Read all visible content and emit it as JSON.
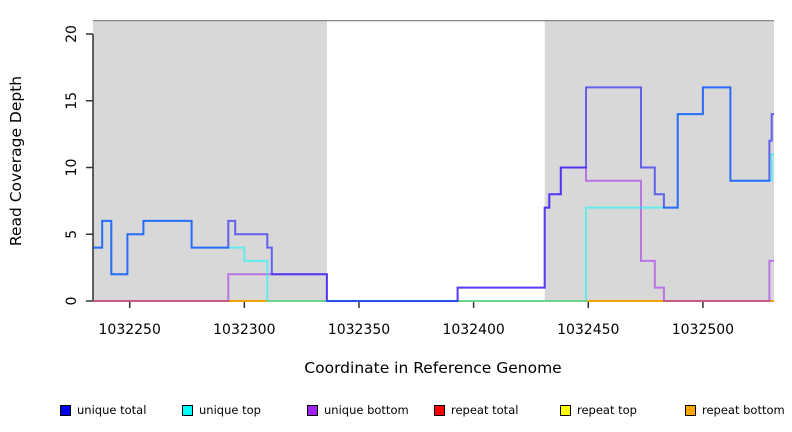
{
  "chart_data": {
    "type": "line",
    "subtype": "step-coverage-plot",
    "title": "",
    "xlabel": "Coordinate in Reference Genome",
    "ylabel": "Read Coverage Depth",
    "xlim": [
      1032234,
      1032531
    ],
    "ylim": [
      0,
      21
    ],
    "x_ticks": [
      1032250,
      1032300,
      1032350,
      1032400,
      1032450,
      1032500
    ],
    "x_tick_labels": [
      "1032250",
      "1032300",
      "1032350",
      "1032400",
      "1032450",
      "1032500"
    ],
    "y_ticks": [
      0,
      5,
      10,
      15,
      20
    ],
    "y_tick_labels": [
      "0",
      "5",
      "10",
      "15",
      "20"
    ],
    "grid": false,
    "panel": {
      "background_color": "#d8d8d8",
      "shaded_regions": [
        [
          1032234,
          1032336
        ],
        [
          1032431,
          1032531
        ]
      ],
      "unshaded_region": [
        1032336,
        1032431
      ],
      "top_border_color": "#888888"
    },
    "line_width": 2,
    "line_alpha": 0.55,
    "series": [
      {
        "name": "repeat total",
        "color": "#FF0000",
        "steps": [
          [
            1032234,
            0
          ]
        ]
      },
      {
        "name": "repeat top",
        "color": "#FFFF00",
        "steps": [
          [
            1032234,
            0
          ]
        ]
      },
      {
        "name": "repeat bottom",
        "color": "#FFA500",
        "steps": [
          [
            1032234,
            0
          ]
        ]
      },
      {
        "name": "unique bottom",
        "color": "#A020F0",
        "steps": [
          [
            1032234,
            0
          ],
          [
            1032293,
            2
          ],
          [
            1032336,
            0
          ],
          [
            1032393,
            1
          ],
          [
            1032431,
            7
          ],
          [
            1032433,
            8
          ],
          [
            1032438,
            10
          ],
          [
            1032449,
            9
          ],
          [
            1032473,
            3
          ],
          [
            1032479,
            1
          ],
          [
            1032483,
            0
          ],
          [
            1032529,
            3
          ]
        ]
      },
      {
        "name": "unique top",
        "color": "#00FFFF",
        "steps": [
          [
            1032234,
            4
          ],
          [
            1032238,
            6
          ],
          [
            1032242,
            2
          ],
          [
            1032249,
            5
          ],
          [
            1032256,
            6
          ],
          [
            1032277,
            4
          ],
          [
            1032300,
            3
          ],
          [
            1032310,
            0
          ],
          [
            1032449,
            7
          ],
          [
            1032489,
            14
          ],
          [
            1032500,
            16
          ],
          [
            1032512,
            9
          ],
          [
            1032530,
            11
          ]
        ]
      },
      {
        "name": "unique total",
        "color": "#0000FF",
        "steps": [
          [
            1032234,
            4
          ],
          [
            1032238,
            6
          ],
          [
            1032242,
            2
          ],
          [
            1032249,
            5
          ],
          [
            1032256,
            6
          ],
          [
            1032277,
            4
          ],
          [
            1032293,
            6
          ],
          [
            1032296,
            5
          ],
          [
            1032310,
            4
          ],
          [
            1032312,
            2
          ],
          [
            1032336,
            0
          ],
          [
            1032393,
            1
          ],
          [
            1032431,
            7
          ],
          [
            1032433,
            8
          ],
          [
            1032438,
            10
          ],
          [
            1032449,
            16
          ],
          [
            1032473,
            10
          ],
          [
            1032479,
            8
          ],
          [
            1032483,
            7
          ],
          [
            1032489,
            14
          ],
          [
            1032500,
            16
          ],
          [
            1032512,
            9
          ],
          [
            1032529,
            12
          ],
          [
            1032530,
            14
          ]
        ]
      }
    ],
    "legend": [
      {
        "label": "unique total",
        "color": "#0000EE"
      },
      {
        "label": "unique top",
        "color": "#00FFFF"
      },
      {
        "label": "unique bottom",
        "color": "#A020F0"
      },
      {
        "label": "repeat total",
        "color": "#FF0000"
      },
      {
        "label": "repeat top",
        "color": "#FFFF00"
      },
      {
        "label": "repeat bottom",
        "color": "#FFA500"
      }
    ],
    "legend_position": "bottom"
  }
}
